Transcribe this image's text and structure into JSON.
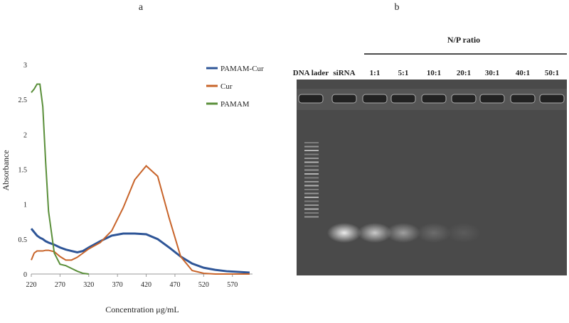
{
  "panel_labels": [
    "a",
    "b"
  ],
  "chart_data": {
    "type": "line",
    "x_label": "Concentration μg/mL",
    "y_label": "Absorbance",
    "x": [
      220,
      225,
      230,
      235,
      240,
      245,
      250,
      260,
      270,
      280,
      290,
      300,
      310,
      320,
      340,
      360,
      380,
      400,
      420,
      440,
      460,
      480,
      500,
      520,
      540,
      560,
      580,
      600
    ],
    "series": [
      {
        "name": "PAMAM-Cur",
        "color": "#2e5597",
        "values": [
          0.65,
          0.6,
          0.55,
          0.52,
          0.5,
          0.47,
          0.45,
          0.42,
          0.38,
          0.35,
          0.33,
          0.31,
          0.33,
          0.38,
          0.47,
          0.55,
          0.58,
          0.58,
          0.57,
          0.5,
          0.38,
          0.25,
          0.15,
          0.09,
          0.06,
          0.04,
          0.03,
          0.02
        ]
      },
      {
        "name": "Cur",
        "color": "#c8642a",
        "values": [
          0.2,
          0.3,
          0.33,
          0.33,
          0.33,
          0.34,
          0.34,
          0.32,
          0.25,
          0.2,
          0.2,
          0.24,
          0.3,
          0.36,
          0.45,
          0.62,
          0.95,
          1.35,
          1.55,
          1.4,
          0.8,
          0.25,
          0.05,
          0.01,
          0,
          0,
          0,
          0
        ]
      },
      {
        "name": "PAMAM",
        "color": "#5a8f3a",
        "values": [
          2.6,
          2.65,
          2.72,
          2.72,
          2.4,
          1.6,
          0.9,
          0.3,
          0.14,
          0.12,
          0.08,
          0.04,
          0.01,
          0,
          null,
          null,
          null,
          null,
          null,
          null,
          null,
          null,
          null,
          null,
          null,
          null,
          null,
          null
        ]
      }
    ],
    "xlim": [
      220,
      605
    ],
    "xticks": [
      220,
      270,
      320,
      370,
      420,
      470,
      520,
      570
    ],
    "ylim": [
      0,
      3
    ],
    "yticks": [
      0,
      0.5,
      1,
      1.5,
      2,
      2.5,
      3
    ]
  },
  "gel": {
    "group_label": "N/P ratio",
    "lanes": [
      "DNA lader",
      "siRNA",
      "1:1",
      "5:1",
      "10:1",
      "20:1",
      "30:1",
      "40:1",
      "50:1"
    ]
  }
}
